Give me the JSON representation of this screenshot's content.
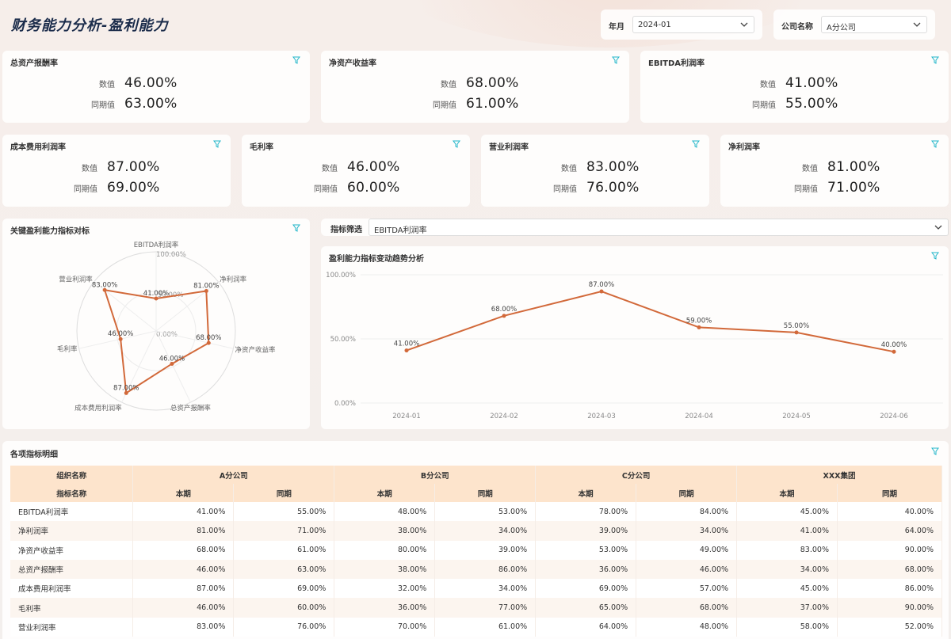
{
  "page": {
    "title": "财务能力分析-盈利能力"
  },
  "filters": {
    "year_label": "年月",
    "year_value": "2024-01",
    "company_label": "公司名称",
    "company_value": "A分公司"
  },
  "kpis_top": [
    {
      "title": "总资产报酬率",
      "value_label": "数值",
      "value": "46.00%",
      "prev_label": "同期值",
      "prev": "63.00%"
    },
    {
      "title": "净资产收益率",
      "value_label": "数值",
      "value": "68.00%",
      "prev_label": "同期值",
      "prev": "61.00%"
    },
    {
      "title": "EBITDA利润率",
      "value_label": "数值",
      "value": "41.00%",
      "prev_label": "同期值",
      "prev": "55.00%"
    }
  ],
  "kpis_mid": [
    {
      "title": "成本费用利润率",
      "value_label": "数值",
      "value": "87.00%",
      "prev_label": "同期值",
      "prev": "69.00%"
    },
    {
      "title": "毛利率",
      "value_label": "数值",
      "value": "46.00%",
      "prev_label": "同期值",
      "prev": "60.00%"
    },
    {
      "title": "营业利润率",
      "value_label": "数值",
      "value": "83.00%",
      "prev_label": "同期值",
      "prev": "76.00%"
    },
    {
      "title": "净利润率",
      "value_label": "数值",
      "value": "81.00%",
      "prev_label": "同期值",
      "prev": "71.00%"
    }
  ],
  "radar": {
    "title": "关键盈利能力指标对标",
    "scale_labels": [
      "100.00%",
      "50.00%",
      "0.00%"
    ]
  },
  "indicator_filter": {
    "label": "指标筛选",
    "value": "EBITDA利润率"
  },
  "trend": {
    "title": "盈利能力指标变动趋势分析"
  },
  "chart_data": [
    {
      "type": "radar",
      "title": "关键盈利能力指标对标",
      "axes": [
        "EBITDA利润率",
        "净利润率",
        "净资产收益率",
        "总资产报酬率",
        "成本费用利润率",
        "毛利率",
        "营业利润率"
      ],
      "values": [
        41,
        81,
        68,
        46,
        87,
        46,
        83
      ],
      "value_labels": [
        "41.00%",
        "81.00%",
        "68.00%",
        "46.00%",
        "87.00%",
        "46.00%",
        "83.00%"
      ],
      "range": [
        0,
        100
      ],
      "color": "#d2693a"
    },
    {
      "type": "line",
      "title": "盈利能力指标变动趋势分析",
      "x": [
        "2024-01",
        "2024-02",
        "2024-03",
        "2024-04",
        "2024-05",
        "2024-06"
      ],
      "y": [
        41,
        68,
        87,
        59,
        55,
        40
      ],
      "point_labels": [
        "41.00%",
        "68.00%",
        "87.00%",
        "59.00%",
        "55.00%",
        "40.00%"
      ],
      "yticks": [
        "100.00%",
        "50.00%",
        "0.00%"
      ],
      "ylim": [
        0,
        100
      ],
      "color": "#d2693a",
      "grid": true
    }
  ],
  "table": {
    "title": "各项指标明细",
    "header1": [
      "组织名称",
      "A分公司",
      "B分公司",
      "C分公司",
      "XXX集团"
    ],
    "header2": [
      "指标名称",
      "本期",
      "同期",
      "本期",
      "同期",
      "本期",
      "同期",
      "本期",
      "同期"
    ],
    "rows": [
      [
        "EBITDA利润率",
        "41.00%",
        "55.00%",
        "48.00%",
        "53.00%",
        "78.00%",
        "84.00%",
        "45.00%",
        "40.00%"
      ],
      [
        "净利润率",
        "81.00%",
        "71.00%",
        "38.00%",
        "34.00%",
        "39.00%",
        "34.00%",
        "41.00%",
        "64.00%"
      ],
      [
        "净资产收益率",
        "68.00%",
        "61.00%",
        "80.00%",
        "39.00%",
        "53.00%",
        "49.00%",
        "83.00%",
        "90.00%"
      ],
      [
        "总资产报酬率",
        "46.00%",
        "63.00%",
        "38.00%",
        "86.00%",
        "36.00%",
        "46.00%",
        "34.00%",
        "68.00%"
      ],
      [
        "成本费用利润率",
        "87.00%",
        "69.00%",
        "32.00%",
        "34.00%",
        "69.00%",
        "57.00%",
        "45.00%",
        "86.00%"
      ],
      [
        "毛利率",
        "46.00%",
        "60.00%",
        "36.00%",
        "77.00%",
        "65.00%",
        "68.00%",
        "37.00%",
        "90.00%"
      ],
      [
        "营业利润率",
        "83.00%",
        "76.00%",
        "70.00%",
        "61.00%",
        "64.00%",
        "48.00%",
        "58.00%",
        "52.00%"
      ]
    ]
  },
  "colors": {
    "accent": "#d2693a",
    "filter_icon": "#1fb5c9",
    "title": "#1a2b4a",
    "table_header": "#fde4cc"
  }
}
